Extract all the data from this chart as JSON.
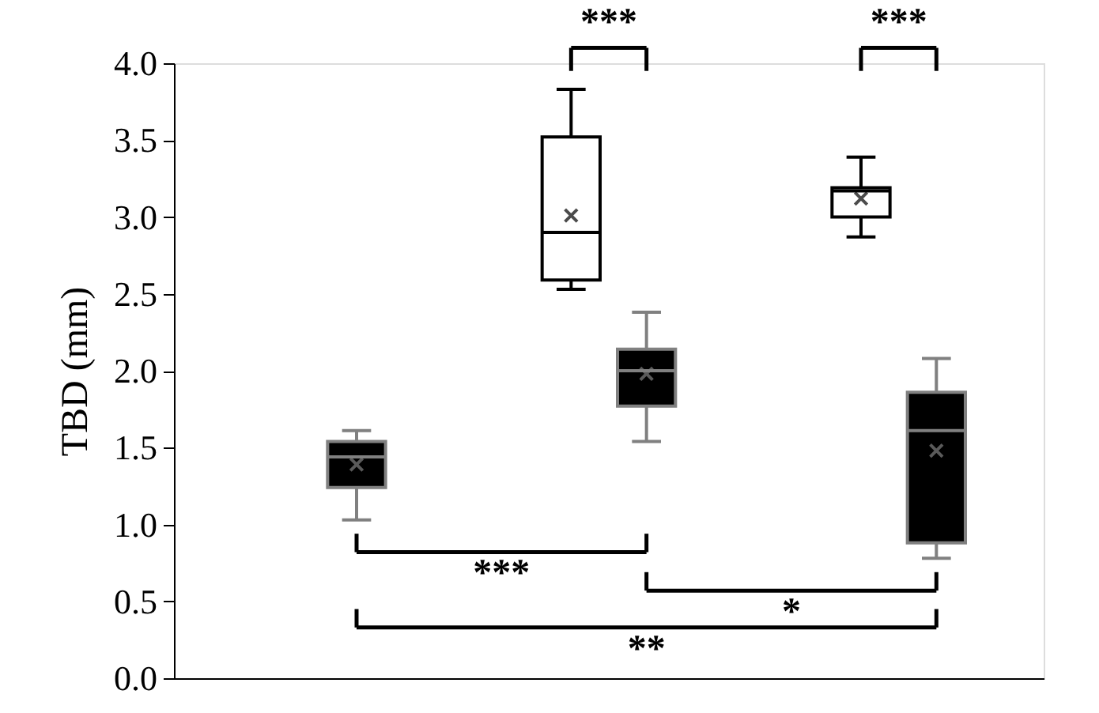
{
  "chart_data": {
    "type": "box",
    "ylabel": "TBD (mm)",
    "categories": [
      null,
      null,
      null
    ],
    "series": [
      {
        "color": "#ffffff",
        "boxes": [
          null,
          {
            "low": 2.53,
            "q1": 2.59,
            "median": 2.9,
            "q3": 3.52,
            "high": 3.83,
            "mean": 3.01
          },
          {
            "low": 2.87,
            "q1": 3.0,
            "median": 3.17,
            "q3": 3.19,
            "high": 3.39,
            "mean": 3.12
          }
        ]
      },
      {
        "color": "#000000",
        "boxes": [
          {
            "low": 1.03,
            "q1": 1.24,
            "median": 1.44,
            "q3": 1.54,
            "high": 1.61,
            "mean": 1.39
          },
          {
            "low": 1.54,
            "q1": 1.77,
            "median": 2.0,
            "q3": 2.14,
            "high": 2.38,
            "mean": 1.98
          },
          {
            "low": 0.78,
            "q1": 0.88,
            "median": 1.61,
            "q3": 1.86,
            "high": 2.08,
            "mean": 1.48
          }
        ]
      }
    ],
    "ylim": [
      0,
      4
    ],
    "yticks": [
      {
        "value": 0,
        "label": "0.0"
      },
      {
        "value": 0.5,
        "label": "0.5"
      },
      {
        "value": 1,
        "label": "1.0"
      },
      {
        "value": 1.5,
        "label": "1.5"
      },
      {
        "value": 2,
        "label": "2.0"
      },
      {
        "value": 2.5,
        "label": "2.5"
      },
      {
        "value": 3,
        "label": "3.0"
      },
      {
        "value": 3.5,
        "label": "3.5"
      },
      {
        "value": 4,
        "label": "4.0"
      }
    ],
    "tick_labels": "y",
    "grid": false,
    "annotations": [
      "***",
      "***",
      "***",
      "*",
      "**"
    ]
  }
}
